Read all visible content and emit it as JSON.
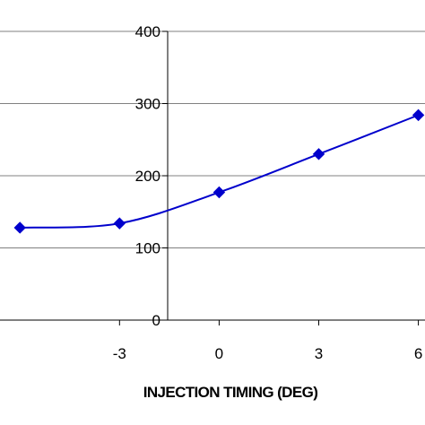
{
  "chart_data": {
    "type": "line",
    "title": "",
    "xlabel": "INJECTION TIMING (DEG)",
    "ylabel": "",
    "x_ticks": [
      "-3",
      "0",
      "3",
      "6"
    ],
    "y_ticks": [
      "0",
      "100",
      "200",
      "300",
      "400"
    ],
    "xlim": [
      -6.6,
      6.2
    ],
    "ylim": [
      0,
      400
    ],
    "grid": "horizontal",
    "legend": "none",
    "series": [
      {
        "color": "#0000cc",
        "marker": "diamond",
        "points": [
          {
            "x": -6,
            "y": 128
          },
          {
            "x": -3,
            "y": 134
          },
          {
            "x": 0,
            "y": 177
          },
          {
            "x": 3,
            "y": 230
          },
          {
            "x": 6,
            "y": 284
          }
        ]
      }
    ]
  }
}
